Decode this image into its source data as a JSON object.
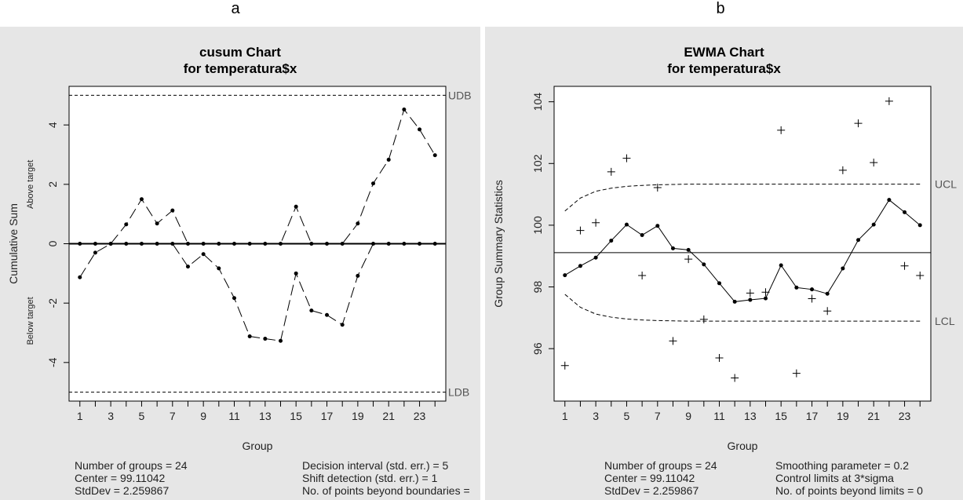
{
  "figure": {
    "panel_labels": [
      "a",
      "b"
    ]
  },
  "chart_data": [
    {
      "type": "line",
      "title": "cusum Chart",
      "subtitle": "for temperatura$x",
      "xlabel": "Group",
      "ylabel": "Cumulative Sum",
      "ylabel_upper": "Above target",
      "ylabel_lower": "Below target",
      "xlim": [
        0.3,
        24.7
      ],
      "ylim": [
        -5.3,
        5.3
      ],
      "x_ticks": [
        1,
        2,
        3,
        4,
        5,
        6,
        7,
        8,
        9,
        10,
        11,
        12,
        13,
        14,
        15,
        16,
        17,
        18,
        19,
        20,
        21,
        22,
        23,
        24
      ],
      "x_tick_labels": [
        "1",
        "3",
        "5",
        "7",
        "9",
        "11",
        "13",
        "15",
        "17",
        "19",
        "21",
        "23"
      ],
      "x_tick_label_values": [
        1,
        3,
        5,
        7,
        9,
        11,
        13,
        15,
        17,
        19,
        21,
        23
      ],
      "y_ticks": [
        -4,
        -2,
        0,
        2,
        4
      ],
      "y_tick_labels": [
        "-4",
        "-2",
        "0",
        "2",
        "4"
      ],
      "grid": false,
      "series": [
        {
          "values": [
            0,
            0,
            0,
            0.65,
            1.5,
            0.68,
            1.12,
            0,
            0,
            0,
            0,
            0,
            0,
            0,
            1.25,
            0,
            0,
            0,
            0.68,
            2.03,
            2.83,
            4.52,
            3.85,
            2.98
          ]
        },
        {
          "values": [
            -1.13,
            -0.3,
            0,
            0,
            0,
            0,
            0,
            -0.77,
            -0.35,
            -0.83,
            -1.83,
            -3.12,
            -3.2,
            -3.27,
            -1.0,
            -2.25,
            -2.4,
            -2.73,
            -1.08,
            0,
            0,
            0,
            0,
            0
          ]
        }
      ],
      "reference_lines": [
        {
          "label": "UDB",
          "y": 5
        },
        {
          "label": "LDB",
          "y": -5
        }
      ],
      "stats_left": [
        "Number of groups = 24",
        "Center = 99.11042",
        "StdDev = 2.259867"
      ],
      "stats_right": [
        "Decision interval (std. err.) = 5",
        "Shift detection (std. err.) = 1",
        "No. of points beyond boundaries ="
      ]
    },
    {
      "type": "line",
      "title": "EWMA Chart",
      "subtitle": "for temperatura$x",
      "xlabel": "Group",
      "ylabel": "Group Summary Statistics",
      "xlim": [
        0.3,
        24.7
      ],
      "ylim": [
        94.3,
        104.5
      ],
      "x_ticks": [
        1,
        2,
        3,
        4,
        5,
        6,
        7,
        8,
        9,
        10,
        11,
        12,
        13,
        14,
        15,
        16,
        17,
        18,
        19,
        20,
        21,
        22,
        23,
        24
      ],
      "x_tick_labels": [
        "1",
        "3",
        "5",
        "7",
        "9",
        "11",
        "13",
        "15",
        "17",
        "19",
        "21",
        "23"
      ],
      "x_tick_label_values": [
        1,
        3,
        5,
        7,
        9,
        11,
        13,
        15,
        17,
        19,
        21,
        23
      ],
      "y_ticks": [
        96,
        98,
        100,
        102,
        104
      ],
      "y_tick_labels": [
        "96",
        "98",
        "100",
        "102",
        "104"
      ],
      "grid": false,
      "center": 99.11,
      "series": [
        {
          "name": "",
          "kind": "observed",
          "values": [
            95.45,
            99.83,
            100.08,
            101.73,
            102.17,
            98.37,
            101.22,
            96.25,
            98.9,
            96.95,
            95.7,
            95.05,
            97.8,
            97.83,
            103.08,
            95.2,
            97.62,
            97.22,
            101.78,
            103.3,
            102.03,
            104.02,
            98.68,
            98.37
          ]
        },
        {
          "name": "",
          "kind": "ewma",
          "values": [
            98.38,
            98.68,
            98.95,
            99.5,
            100.02,
            99.68,
            99.98,
            99.25,
            99.2,
            98.73,
            98.12,
            97.52,
            97.58,
            97.63,
            98.7,
            97.98,
            97.92,
            97.78,
            98.6,
            99.52,
            100.02,
            100.82,
            100.42,
            100.0
          ]
        },
        {
          "name": "",
          "kind": "ucl",
          "values": [
            100.46,
            100.88,
            101.1,
            101.2,
            101.26,
            101.29,
            101.31,
            101.32,
            101.33,
            101.33,
            101.33,
            101.33,
            101.33,
            101.33,
            101.33,
            101.33,
            101.33,
            101.33,
            101.33,
            101.33,
            101.33,
            101.33,
            101.33,
            101.33
          ]
        },
        {
          "name": "",
          "kind": "lcl",
          "values": [
            97.76,
            97.34,
            97.12,
            97.02,
            96.96,
            96.93,
            96.91,
            96.9,
            96.89,
            96.89,
            96.89,
            96.89,
            96.89,
            96.89,
            96.89,
            96.89,
            96.89,
            96.89,
            96.89,
            96.89,
            96.89,
            96.89,
            96.89,
            96.89
          ]
        }
      ],
      "limit_labels": {
        "upper": "UCL",
        "lower": "LCL"
      },
      "stats_left": [
        "Number of groups = 24",
        "Center = 99.11042",
        "StdDev = 2.259867"
      ],
      "stats_right": [
        "Smoothing parameter =  0.2",
        "Control limits at 3*sigma",
        "No. of points beyond limits = 0"
      ]
    }
  ]
}
